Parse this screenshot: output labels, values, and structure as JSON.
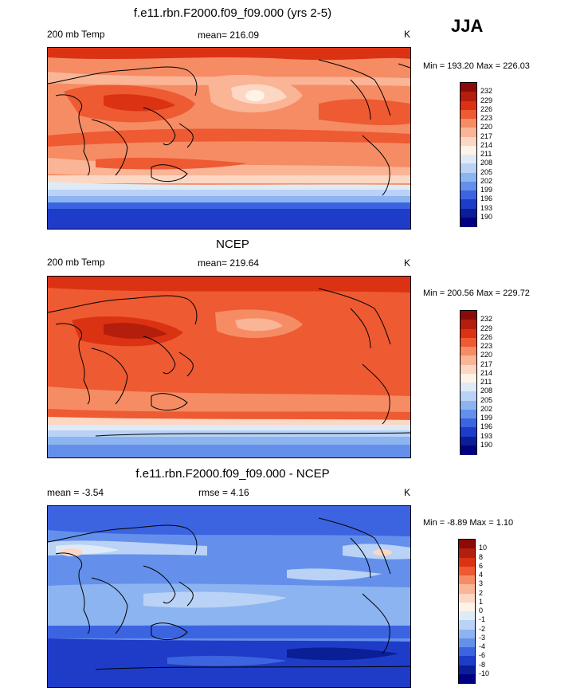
{
  "season": "JJA",
  "panels": [
    {
      "title": "f.e11.rbn.F2000.f09_f09.000 (yrs 2-5)",
      "left_label": "200 mb Temp",
      "center_label": "mean= 216.09",
      "units": "K",
      "minmax": "Min = 193.20 Max = 226.03",
      "levels": [
        "232",
        "229",
        "226",
        "223",
        "220",
        "217",
        "214",
        "211",
        "208",
        "205",
        "202",
        "199",
        "196",
        "193",
        "190"
      ],
      "colors": [
        "#8b0a0a",
        "#b41e0c",
        "#dc3214",
        "#ee5a32",
        "#f58c64",
        "#fab496",
        "#fcd7c3",
        "#fff3e6",
        "#deebf7",
        "#b9d2f5",
        "#8cb4f0",
        "#6490eb",
        "#3c64e1",
        "#1e3cc8",
        "#0a1e96",
        "#000082"
      ]
    },
    {
      "title": "NCEP",
      "left_label": "200 mb Temp",
      "center_label": "mean= 219.64",
      "units": "K",
      "minmax": "Min = 200.56 Max = 229.72",
      "levels": [
        "232",
        "229",
        "226",
        "223",
        "220",
        "217",
        "214",
        "211",
        "208",
        "205",
        "202",
        "199",
        "196",
        "193",
        "190"
      ],
      "colors": [
        "#8b0a0a",
        "#b41e0c",
        "#dc3214",
        "#ee5a32",
        "#f58c64",
        "#fab496",
        "#fcd7c3",
        "#fff3e6",
        "#deebf7",
        "#b9d2f5",
        "#8cb4f0",
        "#6490eb",
        "#3c64e1",
        "#1e3cc8",
        "#0a1e96",
        "#000082"
      ]
    },
    {
      "title": "f.e11.rbn.F2000.f09_f09.000 - NCEP",
      "left_label": "mean =  -3.54",
      "center_label": "rmse =   4.16",
      "units": "K",
      "minmax": "Min =  -8.89 Max =   1.10",
      "levels": [
        "10",
        "8",
        "6",
        "4",
        "3",
        "2",
        "1",
        "0",
        "-1",
        "-2",
        "-3",
        "-4",
        "-6",
        "-8",
        "-10"
      ],
      "colors": [
        "#8b0a0a",
        "#b41e0c",
        "#dc3214",
        "#ee5a32",
        "#f58c64",
        "#fab496",
        "#fcd7c3",
        "#fff3e6",
        "#deebf7",
        "#b9d2f5",
        "#8cb4f0",
        "#6490eb",
        "#3c64e1",
        "#1e3cc8",
        "#0a1e96",
        "#000082"
      ]
    }
  ]
}
